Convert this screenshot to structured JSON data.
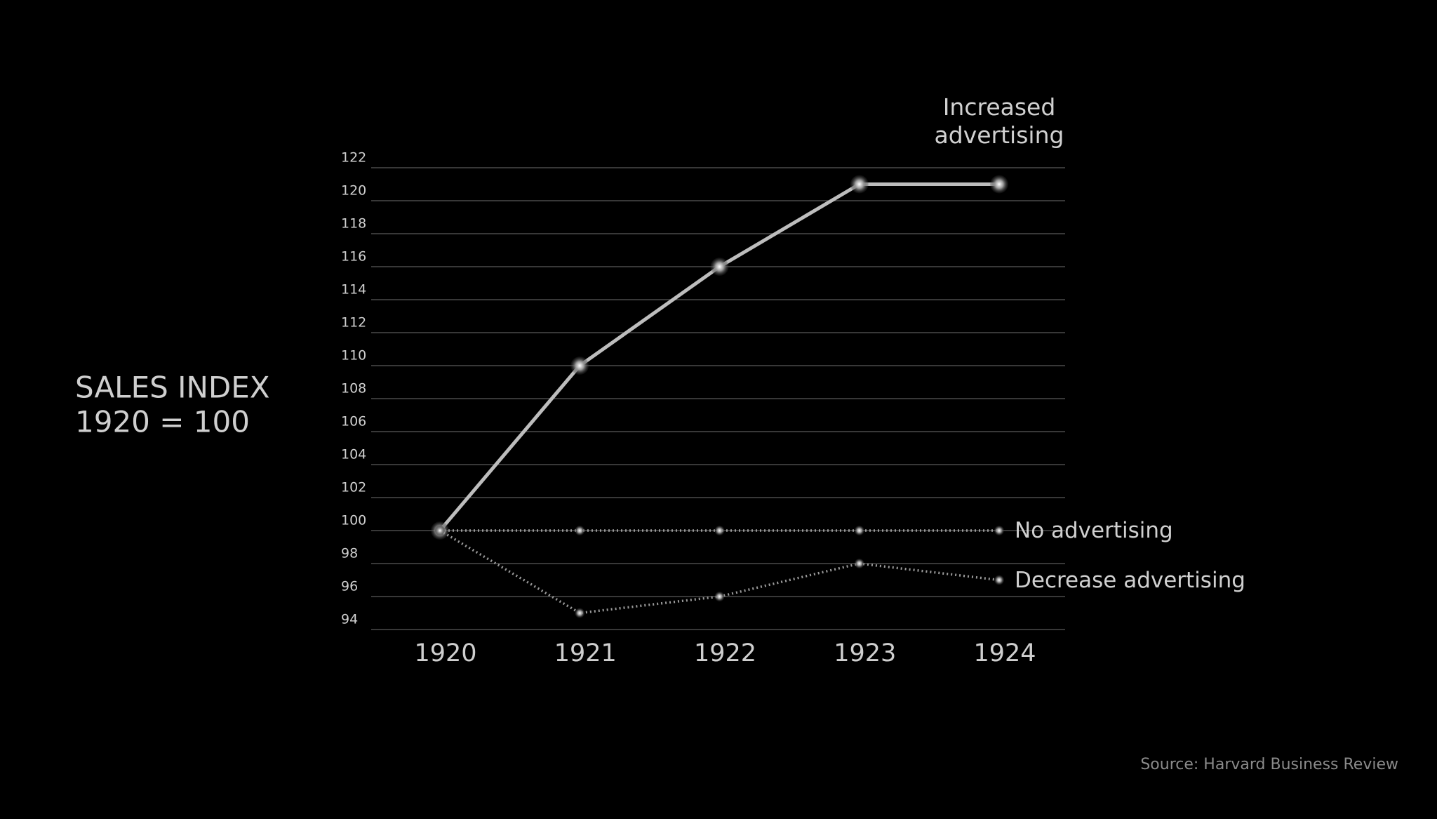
{
  "chart_data": {
    "type": "line",
    "y_label": "SALES INDEX",
    "y_label_note": "1920 = 100",
    "source": "Source: Harvard Business Review",
    "categories": [
      "1920",
      "1921",
      "1922",
      "1923",
      "1924"
    ],
    "series": [
      {
        "name": "Increased advertising",
        "color": "#bdbdbd",
        "line_style": "solid",
        "values": [
          100,
          110,
          116,
          121,
          121
        ]
      },
      {
        "name": "No advertising",
        "color": "#9a9a9a",
        "line_style": "dotted",
        "values": [
          100,
          100,
          100,
          100,
          100
        ]
      },
      {
        "name": "Decrease advertising",
        "color": "#9a9a9a",
        "line_style": "dotted",
        "values": [
          100,
          95,
          96,
          98,
          97
        ]
      }
    ],
    "ylim": [
      94,
      122
    ],
    "yticks": [
      94,
      96,
      98,
      100,
      102,
      104,
      106,
      108,
      110,
      112,
      114,
      116,
      118,
      120,
      122
    ],
    "grid": true
  }
}
